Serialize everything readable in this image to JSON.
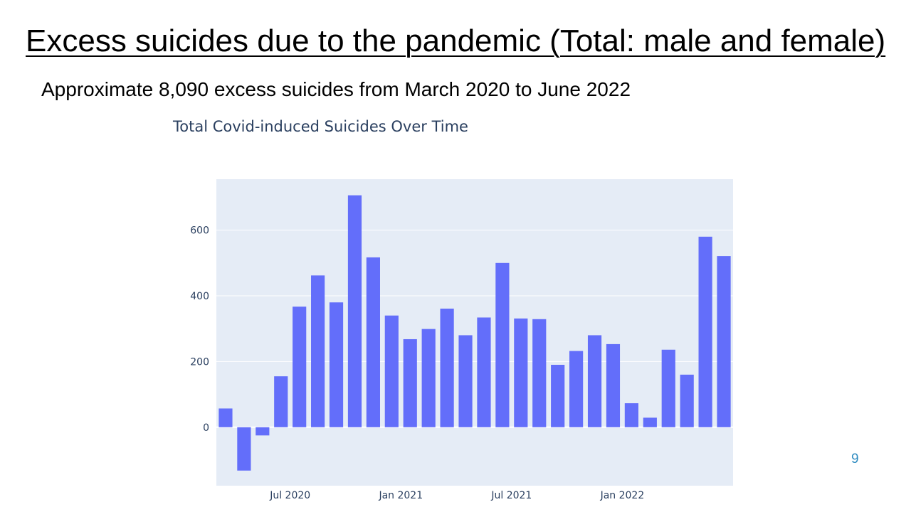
{
  "slide": {
    "title": "Excess suicides due to the pandemic (Total: male and female)",
    "subtitle": "Approximate 8,090 excess suicides from March 2020 to June 2022",
    "page_number": "9"
  },
  "colors": {
    "bar": "#636efa",
    "plot_background": "#e5ecf6",
    "gridline": "#ffffff",
    "tick_text": "#2a3f5f",
    "page_number": "#2e8bc0"
  },
  "chart_data": {
    "type": "bar",
    "title": "Total Covid-induced Suicides Over Time",
    "xlabel": "",
    "ylabel": "",
    "categories": [
      "2020-03",
      "2020-04",
      "2020-05",
      "2020-06",
      "2020-07",
      "2020-08",
      "2020-09",
      "2020-10",
      "2020-11",
      "2020-12",
      "2021-01",
      "2021-02",
      "2021-03",
      "2021-04",
      "2021-05",
      "2021-06",
      "2021-07",
      "2021-08",
      "2021-09",
      "2021-10",
      "2021-11",
      "2021-12",
      "2022-01",
      "2022-02",
      "2022-03",
      "2022-04",
      "2022-05",
      "2022-06"
    ],
    "values": [
      57,
      -132,
      -25,
      155,
      367,
      462,
      380,
      706,
      517,
      340,
      268,
      299,
      361,
      280,
      334,
      500,
      331,
      329,
      190,
      232,
      280,
      253,
      73,
      29,
      236,
      160,
      580,
      521
    ],
    "y_ticks": [
      0,
      200,
      400,
      600
    ],
    "y_tick_labels": [
      "0",
      "200",
      "400",
      "600"
    ],
    "ylim": [
      -178,
      755
    ],
    "x_tick_labels": [
      {
        "category": "2020-07",
        "label": "Jul 2020"
      },
      {
        "category": "2021-01",
        "label": "Jan 2021"
      },
      {
        "category": "2021-07",
        "label": "Jul 2021"
      },
      {
        "category": "2022-01",
        "label": "Jan 2022"
      }
    ],
    "grid": true,
    "legend": "none"
  }
}
